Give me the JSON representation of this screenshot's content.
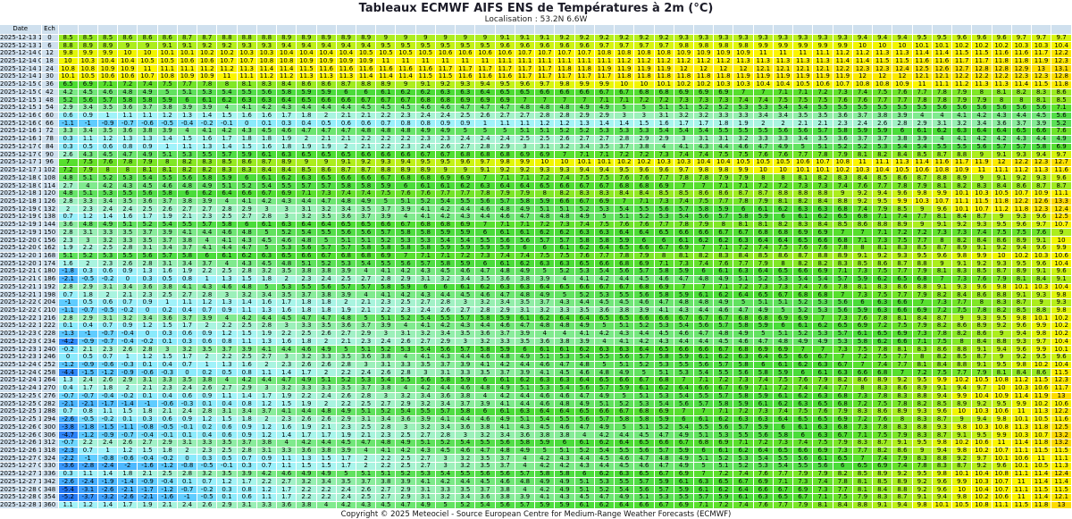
{
  "page_title": "Tableaux ECMWF AIFS ENS de Températures à 2m (°C)",
  "subtitle": "Localisation : 53.2N 6.6W",
  "copyright": "Copyright © 2025 Meteociel - Source European Centre for Medium-Range Weather Forecasts (ECMWF)",
  "chart_data": {
    "type": "heatmap",
    "title": "Tableaux ECMWF AIFS ENS de Températures à 2m (°C)",
    "subtitle": "Localisation : 53.2N 6.6W",
    "date_header": "Date",
    "ech_header": "Ech",
    "member_columns": 51,
    "note_columns_sorted": "each row shows the 51 ensemble member temperatures sorted ascending",
    "quantile_positions": [
      0,
      1,
      12,
      13,
      24,
      25,
      37,
      38,
      49,
      50
    ],
    "rows": [
      {
        "date": "2025-12-13 12Z",
        "ech": 0,
        "q": [
          8.5,
          8.5,
          8.9,
          8.9,
          9.1,
          9.2,
          9.3,
          9.3,
          9.7,
          9.7
        ]
      },
      {
        "date": "2025-12-13 18Z",
        "ech": 6,
        "q": [
          8.8,
          8.9,
          9.4,
          9.4,
          9.6,
          9.6,
          9.9,
          9.9,
          10.3,
          10.4
        ]
      },
      {
        "date": "2025-12-14 00Z",
        "ech": 12,
        "q": [
          9.8,
          9.9,
          10.4,
          10.4,
          10.7,
          10.7,
          11,
          11.1,
          11.7,
          12.2
        ]
      },
      {
        "date": "2025-12-14 06Z",
        "ech": 18,
        "q": [
          10,
          10.3,
          10.9,
          10.9,
          11.1,
          11.1,
          11.3,
          11.3,
          11.9,
          12.3
        ]
      },
      {
        "date": "2025-12-14 12Z",
        "ech": 24,
        "q": [
          10.8,
          10.8,
          11.5,
          11.6,
          11.7,
          11.8,
          12.1,
          12.1,
          13,
          13.1
        ]
      },
      {
        "date": "2025-12-14 18Z",
        "ech": 30,
        "q": [
          10.1,
          10.5,
          11.3,
          11.3,
          11.7,
          11.7,
          11.9,
          11.9,
          12.3,
          12.8
        ]
      },
      {
        "date": "2025-12-15 00Z",
        "ech": 36,
        "q": [
          6.5,
          6.9,
          8.6,
          8.6,
          9.7,
          9.8,
          10.5,
          10.6,
          11.5,
          11.8
        ]
      },
      {
        "date": "2025-12-15 06Z",
        "ech": 42,
        "q": [
          4.2,
          4.5,
          5.9,
          5.9,
          6.6,
          6.6,
          7.1,
          7.2,
          8.3,
          8.6
        ]
      },
      {
        "date": "2025-12-15 12Z",
        "ech": 48,
        "q": [
          5.2,
          5.6,
          6.5,
          6.6,
          7,
          7,
          7.5,
          7.5,
          8.1,
          8.5
        ]
      },
      {
        "date": "2025-12-15 18Z",
        "ech": 54,
        "q": [
          2.9,
          3.4,
          4.4,
          4.4,
          4.8,
          4.8,
          5.4,
          5.5,
          5.6,
          7.1
        ]
      },
      {
        "date": "2025-12-16 00Z",
        "ech": 60,
        "q": [
          0.6,
          0.9,
          1.8,
          2,
          2.8,
          2.8,
          3.5,
          3.5,
          4.5,
          5.6
        ]
      },
      {
        "date": "2025-12-16 06Z",
        "ech": 66,
        "q": [
          -1.1,
          -1,
          0.4,
          0.5,
          1.2,
          1.2,
          2.1,
          2.1,
          3.9,
          5.2
        ]
      },
      {
        "date": "2025-12-16 12Z",
        "ech": 72,
        "q": [
          3.3,
          3.4,
          4.7,
          4.7,
          5.1,
          5.2,
          5.6,
          5.7,
          6.6,
          7.6
        ]
      },
      {
        "date": "2025-12-16 18Z",
        "ech": 78,
        "q": [
          0.3,
          1.1,
          2,
          2.1,
          2.5,
          2.6,
          3.4,
          3.5,
          4.4,
          4.9
        ]
      },
      {
        "date": "2025-12-17 00Z",
        "ech": 84,
        "q": [
          0.3,
          0.5,
          1.9,
          1.9,
          3.1,
          3.2,
          5,
          5.1,
          5.8,
          6.9
        ]
      },
      {
        "date": "2025-12-17 06Z",
        "ech": 90,
        "q": [
          2.6,
          4.3,
          6.5,
          6.5,
          6.9,
          7,
          7.7,
          7.8,
          9.4,
          9.7
        ]
      },
      {
        "date": "2025-12-17 12Z",
        "ech": 96,
        "q": [
          7,
          7.5,
          9,
          9,
          10,
          10,
          10.6,
          10.7,
          12.3,
          12.7
        ]
      },
      {
        "date": "2025-12-17 18Z",
        "ech": 102,
        "q": [
          7.2,
          7.9,
          8.5,
          8.6,
          9.3,
          9.3,
          10.1,
          10.1,
          11.3,
          11.6
        ]
      },
      {
        "date": "2025-12-18 00Z",
        "ech": 108,
        "q": [
          4.8,
          5.1,
          6.3,
          6.5,
          7.2,
          7.4,
          8.1,
          8.2,
          9.3,
          9.6
        ]
      },
      {
        "date": "2025-12-18 06Z",
        "ech": 114,
        "q": [
          2.7,
          4,
          5.7,
          5.7,
          6.5,
          6.6,
          7.3,
          7.3,
          8.7,
          8.7
        ]
      },
      {
        "date": "2025-12-18 12Z",
        "ech": 120,
        "q": [
          4.8,
          5.1,
          7.1,
          7.3,
          8,
          8.2,
          8.8,
          8.8,
          10.9,
          11.1
        ]
      },
      {
        "date": "2025-12-18 18Z",
        "ech": 126,
        "q": [
          2.8,
          3.3,
          4.4,
          4.7,
          5.9,
          6.6,
          8.2,
          8.4,
          12.6,
          13.3
        ]
      },
      {
        "date": "2025-12-19 00Z",
        "ech": 132,
        "q": [
          2,
          2.3,
          3.1,
          3.2,
          5.1,
          5.1,
          6.3,
          6.3,
          12.3,
          12.4
        ]
      },
      {
        "date": "2025-12-19 06Z",
        "ech": 138,
        "q": [
          0.7,
          1.2,
          3.2,
          3.5,
          4.8,
          4.8,
          6.1,
          6.2,
          9.6,
          12.5
        ]
      },
      {
        "date": "2025-12-19 12Z",
        "ech": 144,
        "q": [
          3.6,
          4.8,
          6.4,
          6.4,
          7.2,
          7.3,
          8.3,
          8.4,
          9.7,
          10.7
        ]
      },
      {
        "date": "2025-12-19 18Z",
        "ech": 150,
        "q": [
          2.8,
          3.1,
          5.4,
          5.5,
          6.2,
          6.2,
          6.9,
          6.9,
          7.6,
          9
        ]
      },
      {
        "date": "2025-12-20 00Z",
        "ech": 156,
        "q": [
          2.3,
          3,
          4.8,
          5,
          5.7,
          5.7,
          6.5,
          6.6,
          9.1,
          10
        ]
      },
      {
        "date": "2025-12-20 06Z",
        "ech": 162,
        "q": [
          1.9,
          2.2,
          5.6,
          5.7,
          6,
          6.1,
          7.6,
          7.6,
          9.6,
          9.9
        ]
      },
      {
        "date": "2025-12-20 12Z",
        "ech": 168,
        "q": [
          5.1,
          5.2,
          6.6,
          6.7,
          7.5,
          7.5,
          8.7,
          8.8,
          10.3,
          10.6
        ]
      },
      {
        "date": "2025-12-20 18Z",
        "ech": 174,
        "q": [
          1.6,
          2,
          5.1,
          5.2,
          6.3,
          6.3,
          8.2,
          8.2,
          9.6,
          10.4
        ]
      },
      {
        "date": "2025-12-21 00Z",
        "ech": 180,
        "q": [
          -1.8,
          0.3,
          3.8,
          3.8,
          5,
          5.2,
          6.6,
          6.9,
          9.1,
          9.6
        ]
      },
      {
        "date": "2025-12-21 06Z",
        "ech": 186,
        "q": [
          -2.1,
          -0.5,
          2.3,
          2.4,
          3.9,
          4,
          5.4,
          5.4,
          8.4,
          9.1
        ]
      },
      {
        "date": "2025-12-21 12Z",
        "ech": 192,
        "q": [
          2.8,
          2.9,
          5.5,
          5.6,
          6.4,
          6.5,
          7.4,
          7.6,
          10.3,
          10.4
        ]
      },
      {
        "date": "2025-12-21 18Z",
        "ech": 198,
        "q": [
          0.7,
          1.8,
          3.7,
          3.8,
          4.9,
          5,
          6.8,
          6.8,
          9.3,
          9.8
        ]
      },
      {
        "date": "2025-12-22 00Z",
        "ech": 204,
        "q": [
          -1,
          0.5,
          1.8,
          1.8,
          3.7,
          4.3,
          5.2,
          5.3,
          9,
          9.3
        ]
      },
      {
        "date": "2025-12-22 06Z",
        "ech": 210,
        "q": [
          -1.1,
          -0.7,
          1.8,
          1.8,
          3.2,
          3.3,
          5.2,
          5.3,
          8.8,
          9.8
        ]
      },
      {
        "date": "2025-12-22 12Z",
        "ech": 216,
        "q": [
          2.8,
          2.9,
          4.7,
          4.7,
          6.2,
          6.4,
          6.9,
          7,
          10.1,
          10.2
        ]
      },
      {
        "date": "2025-12-22 18Z",
        "ech": 222,
        "q": [
          0.1,
          0.4,
          3.3,
          3.5,
          4.8,
          4.8,
          6.1,
          6.2,
          9.9,
          10.2
        ]
      },
      {
        "date": "2025-12-23 00Z",
        "ech": 228,
        "q": [
          -1.3,
          -1,
          2.5,
          2.6,
          4,
          4,
          5.2,
          5.3,
          9.8,
          10.2
        ]
      },
      {
        "date": "2025-12-23 06Z",
        "ech": 234,
        "q": [
          -4.2,
          -0.9,
          1.8,
          2,
          3.6,
          3.8,
          4.9,
          4.9,
          9.7,
          10.4
        ]
      },
      {
        "date": "2025-12-23 12Z",
        "ech": 240,
        "q": [
          -0.2,
          2.1,
          4.6,
          4.9,
          6.1,
          6.1,
          7,
          7,
          9.9,
          10.1
        ]
      },
      {
        "date": "2025-12-23 18Z",
        "ech": 246,
        "q": [
          0,
          0.5,
          3.2,
          3.3,
          5.1,
          5.3,
          6.6,
          6.7,
          9.5,
          9.6
        ]
      },
      {
        "date": "2025-12-24 00Z",
        "ech": 252,
        "q": [
          -1.2,
          -0.9,
          2.6,
          2.6,
          4.6,
          4.7,
          6.2,
          6.3,
          10.2,
          10.4
        ]
      },
      {
        "date": "2025-12-24 06Z",
        "ech": 258,
        "q": [
          -4.4,
          -1.5,
          1.7,
          2,
          4.1,
          4.5,
          6,
          6.1,
          8.6,
          11.5
        ]
      },
      {
        "date": "2025-12-24 12Z",
        "ech": 264,
        "q": [
          1.3,
          2.4,
          4.9,
          5.1,
          6.3,
          6.3,
          7.6,
          7.9,
          11.5,
          12.3
        ]
      },
      {
        "date": "2025-12-24 18Z",
        "ech": 270,
        "q": [
          0.4,
          1.7,
          3.3,
          3.3,
          5.3,
          5.4,
          7.4,
          7.4,
          10.6,
          11.7
        ]
      },
      {
        "date": "2025-12-25 00Z",
        "ech": 276,
        "q": [
          -0.7,
          -0.7,
          2.2,
          2.4,
          4.6,
          4.6,
          6.2,
          6.3,
          11.9,
          13
        ]
      },
      {
        "date": "2025-12-25 06Z",
        "ech": 282,
        "q": [
          -2.1,
          -2.1,
          1.9,
          2,
          4.6,
          4.8,
          6.3,
          6.5,
          10.2,
          10.6
        ]
      },
      {
        "date": "2025-12-25 12Z",
        "ech": 288,
        "q": [
          0.7,
          0.8,
          4.4,
          4.8,
          6.4,
          6.4,
          7.5,
          7.6,
          11.3,
          12.2
        ]
      },
      {
        "date": "2025-12-25 18Z",
        "ech": 294,
        "q": [
          -2.6,
          -0.5,
          2.6,
          2.6,
          5.4,
          5.5,
          6.5,
          6.5,
          10.5,
          11.6
        ]
      },
      {
        "date": "2025-12-26 00Z",
        "ech": 300,
        "q": [
          -3.8,
          -1.8,
          1.9,
          2.1,
          4.5,
          4.6,
          6.1,
          6.3,
          11.8,
          12.5
        ]
      },
      {
        "date": "2025-12-26 06Z",
        "ech": 306,
        "q": [
          -4.7,
          -1.2,
          1.7,
          1.7,
          3.8,
          3.8,
          6,
          6.3,
          10.7,
          13.2
        ]
      },
      {
        "date": "2025-12-26 12Z",
        "ech": 312,
        "q": [
          -0.7,
          2.2,
          4.2,
          4.4,
          5.9,
          6,
          7.4,
          7.5,
          11.8,
          13.2
        ]
      },
      {
        "date": "2025-12-26 18Z",
        "ech": 318,
        "q": [
          -2.3,
          0.7,
          3.6,
          3.8,
          5,
          5.1,
          6.6,
          6.9,
          11.5,
          11.5
        ]
      },
      {
        "date": "2025-12-27 00Z",
        "ech": 324,
        "q": [
          -2.2,
          -1,
          1.3,
          1.5,
          4.2,
          4.3,
          5.6,
          6.1,
          11,
          11.1
        ]
      },
      {
        "date": "2025-12-27 06Z",
        "ech": 330,
        "q": [
          -3.6,
          -2.8,
          1.5,
          1.5,
          4.2,
          4.2,
          5.5,
          5.6,
          10.5,
          11.3
        ]
      },
      {
        "date": "2025-12-27 12Z",
        "ech": 336,
        "q": [
          0.3,
          1.1,
          4.9,
          4.9,
          5.8,
          5.8,
          7.9,
          7.9,
          11.4,
          12.4
        ]
      },
      {
        "date": "2025-12-27 18Z",
        "ech": 342,
        "q": [
          -2.6,
          -2.4,
          3.2,
          3.4,
          4.9,
          4.9,
          7.3,
          7.4,
          11.4,
          11.4
        ]
      },
      {
        "date": "2025-12-28 00Z",
        "ech": 348,
        "q": [
          -5.4,
          -3.1,
          2.2,
          2.2,
          4.2,
          4.9,
          6.9,
          7.3,
          11.5,
          11.5
        ]
      },
      {
        "date": "2025-12-28 06Z",
        "ech": 354,
        "q": [
          -5.2,
          -3.7,
          2.2,
          2.2,
          4.1,
          4.3,
          6.7,
          7.1,
          11.4,
          12.1
        ]
      },
      {
        "date": "2025-12-28 12Z",
        "ech": 360,
        "q": [
          1.1,
          1.2,
          3.8,
          4,
          5.9,
          5.9,
          7.9,
          8.1,
          11.8,
          13
        ]
      }
    ]
  },
  "colors": {
    "label_col_bg": "#cfe0ee",
    "grid_line": "#ffffff",
    "scale": [
      [
        -6,
        "#1a6cf0"
      ],
      [
        -5,
        "#2a7ef5"
      ],
      [
        -4,
        "#338ffa"
      ],
      [
        -3,
        "#40a4fd"
      ],
      [
        -2,
        "#4db8ff"
      ],
      [
        -1,
        "#5fccff"
      ],
      [
        -0.5,
        "#74dcfd"
      ],
      [
        0,
        "#8aeafc"
      ],
      [
        1,
        "#a0f2fa"
      ],
      [
        1.5,
        "#a8f5f2"
      ],
      [
        2,
        "#a9f4e0"
      ],
      [
        2.5,
        "#a6f2d0"
      ],
      [
        3,
        "#9cf0ba"
      ],
      [
        3.5,
        "#90eda6"
      ],
      [
        4,
        "#80ea8e"
      ],
      [
        4.5,
        "#72e77a"
      ],
      [
        5,
        "#62e260"
      ],
      [
        5.5,
        "#54de4a"
      ],
      [
        6,
        "#4adc3a"
      ],
      [
        6.5,
        "#4cdc32"
      ],
      [
        7,
        "#57df2e"
      ],
      [
        7.5,
        "#68e22a"
      ],
      [
        8,
        "#80e726"
      ],
      [
        8.5,
        "#97ea22"
      ],
      [
        9,
        "#aced1e"
      ],
      [
        9.5,
        "#c2f118"
      ],
      [
        9.8,
        "#e0f60a"
      ],
      [
        10,
        "#f2f500"
      ],
      [
        11,
        "#fcf500"
      ],
      [
        12,
        "#fcea00"
      ],
      [
        13,
        "#fcdc00"
      ],
      [
        14,
        "#fcd000"
      ]
    ]
  }
}
